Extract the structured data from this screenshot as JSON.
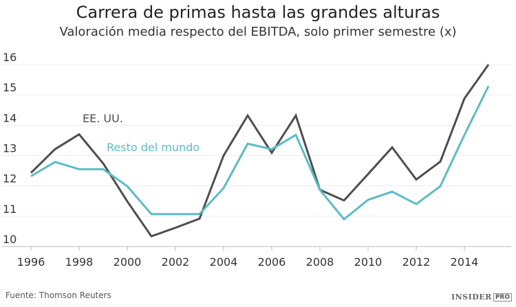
{
  "chart_data": {
    "type": "line",
    "title": "Carrera de primas hasta las grandes alturas",
    "subtitle": "Valoración media respecto del EBITDA, solo primer semestre (x)",
    "x": [
      1996,
      1997,
      1998,
      1999,
      2000,
      2001,
      2002,
      2003,
      2004,
      2005,
      2006,
      2007,
      2008,
      2009,
      2010,
      2011,
      2012,
      2013,
      2014,
      2015
    ],
    "series": [
      {
        "name": "EE. UU.",
        "color": "#4d4d4d",
        "values": [
          12.43,
          13.21,
          13.7,
          12.74,
          11.49,
          10.34,
          10.62,
          10.92,
          13.0,
          14.32,
          13.09,
          14.32,
          11.87,
          11.52,
          12.39,
          13.27,
          12.21,
          12.8,
          14.88,
          16.0
        ]
      },
      {
        "name": "Resto del mundo",
        "color": "#5bbcc4",
        "values": [
          12.32,
          12.79,
          12.55,
          12.55,
          11.99,
          11.07,
          11.07,
          11.07,
          11.93,
          13.39,
          13.21,
          13.68,
          11.87,
          10.9,
          11.54,
          11.81,
          11.4,
          11.99,
          13.68,
          15.29
        ]
      }
    ],
    "xticks": [
      "1996",
      "1998",
      "2000",
      "2002",
      "2004",
      "2006",
      "2008",
      "2010",
      "2012",
      "2014"
    ],
    "yticks": [
      "10",
      "11",
      "12",
      "13",
      "14",
      "15",
      "16"
    ],
    "ylim": [
      10,
      16
    ],
    "xlim": [
      1996,
      2016
    ],
    "grid": true,
    "legend": "inline labels"
  },
  "source": "Fuente: Thomson Reuters",
  "logo": {
    "text": "INSIDER",
    "badge": "PRO"
  }
}
